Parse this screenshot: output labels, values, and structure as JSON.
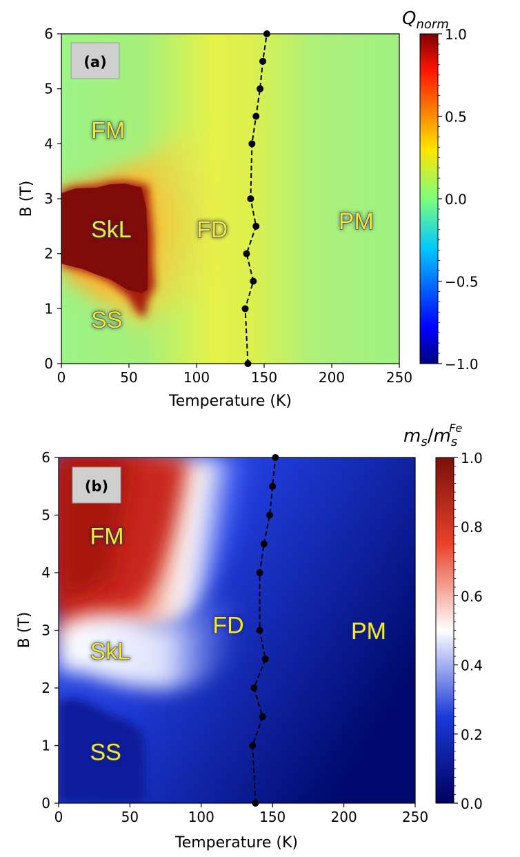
{
  "chart_data": [
    {
      "type": "heatmap",
      "panel_label": "(a)",
      "xlabel": "Temperature (K)",
      "ylabel": "B (T)",
      "xlim": [
        0,
        250
      ],
      "ylim": [
        0,
        6
      ],
      "x_ticks": [
        "0",
        "50",
        "100",
        "150",
        "200",
        "250"
      ],
      "y_ticks": [
        "0",
        "1",
        "2",
        "3",
        "4",
        "5",
        "6"
      ],
      "colorbar": {
        "title": "Q",
        "title_subscript": "norm",
        "range": [
          -1.0,
          1.0
        ],
        "ticks": [
          "1.0",
          "0.5",
          "0.0",
          "−0.5",
          "−1.0"
        ],
        "colormap": "jet"
      },
      "regions": [
        {
          "label": "FM",
          "x": 22,
          "y": 4.1
        },
        {
          "label": "SkL",
          "x": 22,
          "y": 2.3
        },
        {
          "label": "FD",
          "x": 100,
          "y": 2.3
        },
        {
          "label": "PM",
          "x": 205,
          "y": 2.45
        },
        {
          "label": "SS",
          "x": 22,
          "y": 0.65
        }
      ],
      "series": [
        {
          "name": "transition boundary",
          "style": "black dashed line with circle markers",
          "points": [
            [
              138,
              0
            ],
            [
              136,
              1.0
            ],
            [
              142,
              1.5
            ],
            [
              137,
              2.0
            ],
            [
              144,
              2.5
            ],
            [
              140,
              3.0
            ],
            [
              141,
              4.0
            ],
            [
              144,
              4.5
            ],
            [
              147,
              5.0
            ],
            [
              149,
              5.5
            ],
            [
              152,
              6.0
            ]
          ]
        }
      ]
    },
    {
      "type": "heatmap",
      "panel_label": "(b)",
      "xlabel": "Temperature (K)",
      "ylabel": "B (T)",
      "xlim": [
        0,
        250
      ],
      "ylim": [
        0,
        6
      ],
      "x_ticks": [
        "0",
        "50",
        "100",
        "150",
        "200",
        "250"
      ],
      "y_ticks": [
        "0",
        "1",
        "2",
        "3",
        "4",
        "5",
        "6"
      ],
      "colorbar": {
        "title": "m",
        "title_subscript": "s",
        "title_sub2": "s",
        "title_sup2": "Fe",
        "range": [
          0.0,
          1.0
        ],
        "ticks": [
          "1.0",
          "0.8",
          "0.6",
          "0.4",
          "0.2",
          "0.0"
        ],
        "colormap": "coolwarm"
      },
      "regions": [
        {
          "label": "FM",
          "x": 22,
          "y": 4.5
        },
        {
          "label": "SkL",
          "x": 22,
          "y": 2.5
        },
        {
          "label": "FD",
          "x": 108,
          "y": 2.95
        },
        {
          "label": "PM",
          "x": 205,
          "y": 2.85
        },
        {
          "label": "SS",
          "x": 22,
          "y": 0.75
        }
      ],
      "series": [
        {
          "name": "transition boundary",
          "style": "black dashed line with circle markers",
          "points": [
            [
              138,
              0
            ],
            [
              136,
              1.0
            ],
            [
              143,
              1.5
            ],
            [
              137,
              2.0
            ],
            [
              145,
              2.5
            ],
            [
              141,
              3.0
            ],
            [
              141,
              4.0
            ],
            [
              144,
              4.5
            ],
            [
              148,
              5.0
            ],
            [
              150,
              5.5
            ],
            [
              152,
              6.0
            ]
          ]
        }
      ]
    }
  ]
}
